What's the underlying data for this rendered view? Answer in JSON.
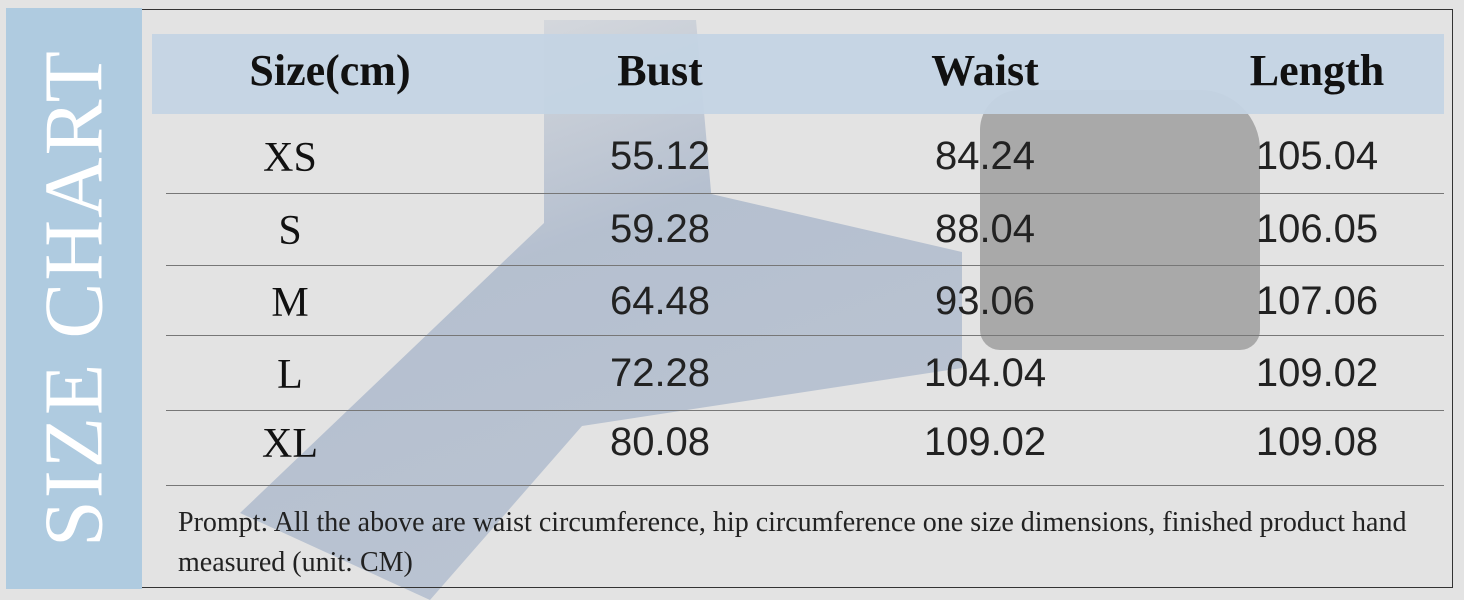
{
  "sidebar_title": "SIZE CHART",
  "table": {
    "headers": [
      "Size(cm)",
      "Bust",
      "Waist",
      "Length"
    ],
    "rows": [
      [
        "XS",
        "55.12",
        "84.24",
        "105.04"
      ],
      [
        "S",
        "59.28",
        "88.04",
        "106.05"
      ],
      [
        "M",
        "64.48",
        "93.06",
        "107.06"
      ],
      [
        "L",
        "72.28",
        "104.04",
        "109.02"
      ],
      [
        "XL",
        "80.08",
        "109.02",
        "109.08"
      ]
    ]
  },
  "note": "Prompt:  All the above are waist circumference, hip circumference one size dimensions, finished product hand measured (unit: CM)",
  "colors": {
    "sidebar": "#afcbe0",
    "header_band": "#c4d4e4",
    "background": "#e3e3e3"
  }
}
